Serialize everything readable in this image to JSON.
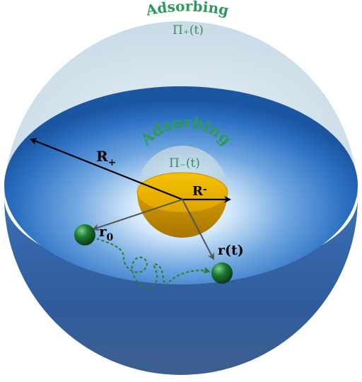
{
  "outer_sphere": {
    "title": "Adsorbing",
    "flux_label": "Π₊(t)"
  },
  "inner_sphere": {
    "title": "Adsorbing",
    "flux_label": "Π₋(t)"
  },
  "radius_labels": {
    "outer": {
      "main": "R",
      "sub": "+"
    },
    "inner": {
      "main": "R",
      "sub": "-"
    },
    "initial": {
      "main": "r",
      "sub": "0"
    },
    "current": "r(t)"
  },
  "colors": {
    "adsorbing_text": "#2e9a5a",
    "flux_text": "#3d8a5a",
    "outer_shell": "#1f5fae",
    "inner_core": "#e8b000",
    "particle": "#1c6b2f",
    "arrow_black": "#000000",
    "arrow_gray": "#555555",
    "path_dashed": "#2f7f3a"
  }
}
